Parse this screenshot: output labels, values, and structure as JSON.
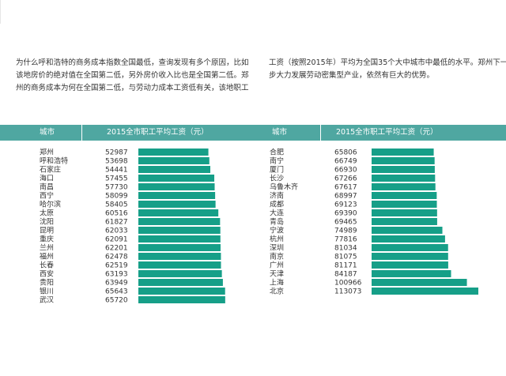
{
  "text": {
    "left_lines": [
      "为什么呼和浩特的商务成本指数全国最低，查询发现有多个原因，比如",
      "该地房价的绝对值在全国第二低，另外房价收入比也是全国第二低。郑",
      "州的商务成本为何在全国第二低，与劳动力成本工资低有关，该地职工"
    ],
    "right_lines": [
      "工资（按照2015年）平均为全国35个大中城市中最低的水平。郑州下一",
      "步大力发展劳动密集型产业，依然有巨大的优势。"
    ]
  },
  "colors": {
    "header": "#4fa7a1",
    "bar": "#169f88"
  },
  "chart_data": {
    "type": "bar",
    "orientation": "horizontal",
    "headers": {
      "category": "城市",
      "value": "2015全市职工平均工资（元）"
    },
    "xlim": [
      0,
      113073
    ],
    "panels": [
      {
        "categories": [
          "郑州",
          "呼和浩特",
          "石家庄",
          "海口",
          "南昌",
          "西宁",
          "哈尔滨",
          "太原",
          "沈阳",
          "昆明",
          "重庆",
          "兰州",
          "福州",
          "长春",
          "西安",
          "贵阳",
          "银川",
          "武汉"
        ],
        "values": [
          52987,
          53698,
          54441,
          57455,
          57730,
          58099,
          58405,
          60516,
          61827,
          62033,
          62091,
          62201,
          62478,
          62519,
          63193,
          63949,
          65643,
          65720
        ]
      },
      {
        "categories": [
          "合肥",
          "南宁",
          "厦门",
          "长沙",
          "乌鲁木齐",
          "济南",
          "成都",
          "大连",
          "青岛",
          "宁波",
          "杭州",
          "深圳",
          "南京",
          "广州",
          "天津",
          "上海",
          "北京"
        ],
        "values": [
          65806,
          66749,
          66930,
          67266,
          67617,
          68997,
          69123,
          69390,
          69465,
          74989,
          77816,
          81034,
          81075,
          81171,
          84187,
          100966,
          113073
        ]
      }
    ]
  }
}
